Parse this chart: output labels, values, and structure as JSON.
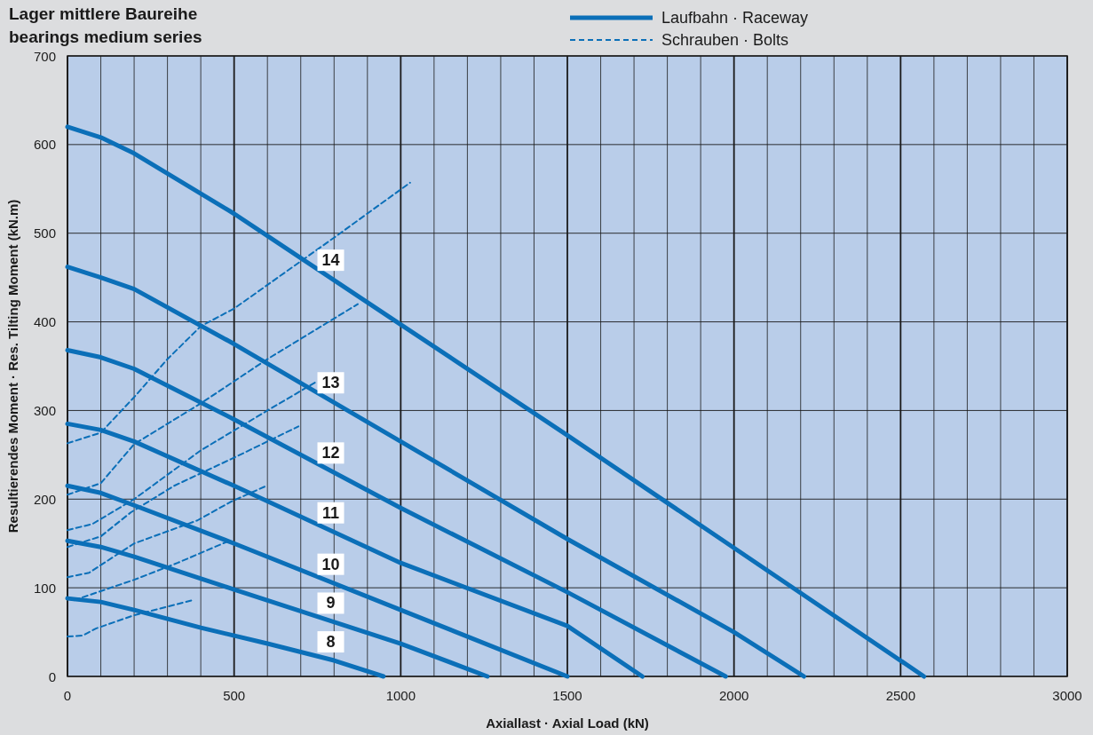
{
  "chart_data": {
    "type": "line",
    "title": "Lager mittlere Baureihe",
    "subtitle": "bearings medium series",
    "xlabel": "Axiallast · Axial Load (kN)",
    "ylabel": "Resultierendes Moment · Res. Tilting Moment (kN.m)",
    "annotations": [
      "Laufbahn · Raceway",
      "Schrauben · Bolts"
    ],
    "grid": true,
    "marker": "none",
    "xlim": [
      0,
      3000
    ],
    "ylim": [
      0,
      700
    ],
    "xticks": [
      0,
      {
        "value": 100,
        "label": null
      },
      {
        "value": 200,
        "label": null
      },
      {
        "value": 300,
        "label": null
      },
      {
        "value": 400,
        "label": null
      },
      500,
      {
        "value": 600,
        "label": null
      },
      {
        "value": 700,
        "label": null
      },
      {
        "value": 800,
        "label": null
      },
      {
        "value": 900,
        "label": null
      },
      1000,
      {
        "value": 1100,
        "label": null
      },
      {
        "value": 1200,
        "label": null
      },
      {
        "value": 1300,
        "label": null
      },
      {
        "value": 1400,
        "label": null
      },
      1500,
      {
        "value": 1600,
        "label": null
      },
      {
        "value": 1700,
        "label": null
      },
      {
        "value": 1800,
        "label": null
      },
      {
        "value": 1900,
        "label": null
      },
      2000,
      {
        "value": 2100,
        "label": null
      },
      {
        "value": 2200,
        "label": null
      },
      {
        "value": 2300,
        "label": null
      },
      {
        "value": 2400,
        "label": null
      },
      2500,
      {
        "value": 2600,
        "label": null
      },
      {
        "value": 2700,
        "label": null
      },
      {
        "value": 2800,
        "label": null
      },
      {
        "value": 2900,
        "label": null
      },
      3000
    ],
    "yticks": [
      0,
      100,
      200,
      300,
      400,
      500,
      600,
      700
    ],
    "series": [
      {
        "name": "8",
        "color": "#0b6fb8",
        "line_style": "solid",
        "x": [
          0,
          100,
          200,
          400,
          600,
          800,
          948
        ],
        "values": [
          88,
          84,
          75,
          55,
          37,
          18,
          0
        ]
      },
      {
        "name": "9",
        "color": "#0b6fb8",
        "line_style": "solid",
        "x": [
          0,
          100,
          200,
          500,
          1000,
          1260
        ],
        "values": [
          153,
          146,
          135,
          98,
          37,
          0
        ]
      },
      {
        "name": "10",
        "color": "#0b6fb8",
        "line_style": "solid",
        "x": [
          0,
          100,
          200,
          500,
          1000,
          1500
        ],
        "values": [
          215,
          207,
          193,
          150,
          75,
          0
        ]
      },
      {
        "name": "11",
        "color": "#0b6fb8",
        "line_style": "solid",
        "x": [
          0,
          100,
          200,
          500,
          1000,
          1500,
          1725
        ],
        "values": [
          285,
          278,
          265,
          215,
          128,
          57,
          0
        ]
      },
      {
        "name": "12",
        "color": "#0b6fb8",
        "line_style": "solid",
        "x": [
          0,
          100,
          200,
          500,
          1000,
          1500,
          1975
        ],
        "values": [
          368,
          360,
          347,
          290,
          190,
          95,
          0
        ]
      },
      {
        "name": "13",
        "color": "#0b6fb8",
        "line_style": "solid",
        "x": [
          0,
          100,
          200,
          500,
          1000,
          1500,
          2000,
          2210
        ],
        "values": [
          462,
          450,
          437,
          375,
          265,
          155,
          50,
          0
        ]
      },
      {
        "name": "14",
        "color": "#0b6fb8",
        "line_style": "solid",
        "x": [
          0,
          100,
          200,
          500,
          1000,
          1500,
          2000,
          2570
        ],
        "values": [
          620,
          608,
          590,
          522,
          397,
          272,
          145,
          0
        ]
      },
      {
        "color": "#0b6fb8",
        "line_style": "dashed",
        "x": [
          0,
          45,
          85,
          200,
          376
        ],
        "values": [
          45,
          46,
          54,
          69,
          86
        ]
      },
      {
        "color": "#0b6fb8",
        "line_style": "dashed",
        "x": [
          20,
          200,
          330,
          485
        ],
        "values": [
          86,
          109,
          128,
          153
        ]
      },
      {
        "color": "#0b6fb8",
        "line_style": "dashed",
        "x": [
          0,
          65,
          200,
          390,
          490,
          597
        ],
        "values": [
          112,
          117,
          150,
          176,
          197,
          215
        ]
      },
      {
        "color": "#0b6fb8",
        "line_style": "dashed",
        "x": [
          0,
          100,
          190,
          320,
          490,
          693
        ],
        "values": [
          146,
          158,
          185,
          215,
          245,
          282
        ]
      },
      {
        "color": "#0b6fb8",
        "line_style": "dashed",
        "x": [
          0,
          75,
          200,
          400,
          600,
          745
        ],
        "values": [
          165,
          172,
          200,
          255,
          300,
          332
        ]
      },
      {
        "color": "#0b6fb8",
        "line_style": "dashed",
        "x": [
          0,
          100,
          200,
          400,
          600,
          871
        ],
        "values": [
          205,
          218,
          262,
          308,
          358,
          420
        ]
      },
      {
        "color": "#0b6fb8",
        "line_style": "dashed",
        "x": [
          0,
          100,
          200,
          300,
          400,
          500,
          800,
          1028
        ],
        "values": [
          263,
          275,
          315,
          358,
          395,
          415,
          495,
          557
        ]
      }
    ]
  }
}
